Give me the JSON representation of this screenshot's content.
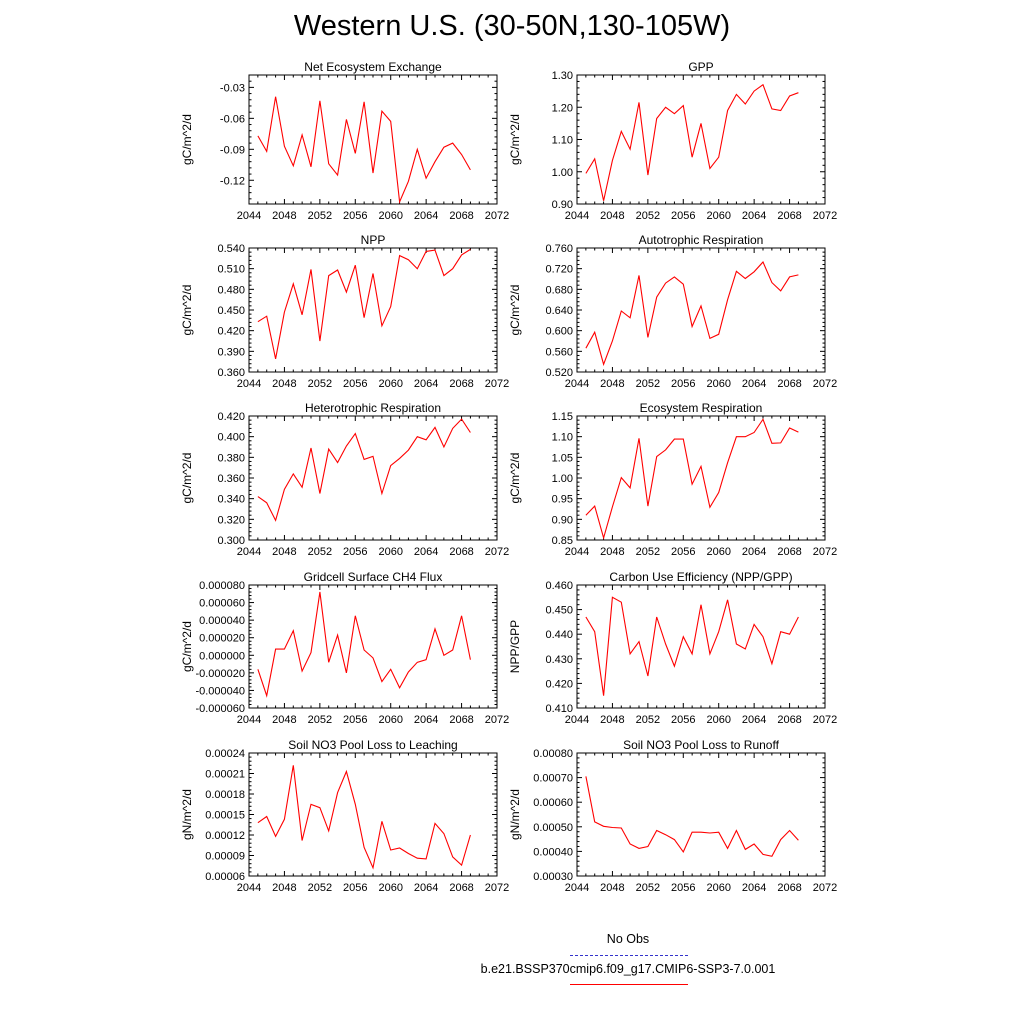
{
  "title": "Western U.S. (30-50N,130-105W)",
  "legend": {
    "obs_label": "No Obs",
    "obs_color": "#3333cc",
    "model_label": "b.e21.BSSP370cmip6.f09_g17.CMIP6-SSP3-7.0.001",
    "model_color": "#ff0000"
  },
  "chart_data": [
    {
      "type": "line",
      "title": "Net Ecosystem Exchange",
      "ylabel": "gC/m^2/d",
      "xlim": [
        2044,
        2072
      ],
      "ylim": [
        -0.143,
        -0.018
      ],
      "xticks": [
        2044,
        2048,
        2052,
        2056,
        2060,
        2064,
        2068,
        2072
      ],
      "xtick_labels": [
        "2044",
        "2048",
        "2052",
        "2056",
        "2060",
        "2064",
        "2068",
        "2072"
      ],
      "yticks": [
        -0.03,
        -0.06,
        -0.09,
        -0.12
      ],
      "ytick_labels": [
        "-0.03",
        "-0.06",
        "-0.09",
        "-0.12"
      ],
      "x": [
        2045,
        2046,
        2047,
        2048,
        2049,
        2050,
        2051,
        2052,
        2053,
        2054,
        2055,
        2056,
        2057,
        2058,
        2059,
        2060,
        2061,
        2062,
        2063,
        2064,
        2065,
        2066,
        2067,
        2068,
        2069
      ],
      "values": [
        -0.077,
        -0.092,
        -0.039,
        -0.087,
        -0.106,
        -0.076,
        -0.107,
        -0.043,
        -0.104,
        -0.115,
        -0.061,
        -0.094,
        -0.044,
        -0.113,
        -0.053,
        -0.063,
        -0.141,
        -0.121,
        -0.09,
        -0.118,
        -0.102,
        -0.088,
        -0.084,
        -0.095,
        -0.11
      ]
    },
    {
      "type": "line",
      "title": "GPP",
      "ylabel": "gC/m^2/d",
      "xlim": [
        2044,
        2072
      ],
      "ylim": [
        0.9,
        1.3
      ],
      "xticks": [
        2044,
        2048,
        2052,
        2056,
        2060,
        2064,
        2068,
        2072
      ],
      "xtick_labels": [
        "2044",
        "2048",
        "2052",
        "2056",
        "2060",
        "2064",
        "2068",
        "2072"
      ],
      "yticks": [
        0.9,
        1.0,
        1.1,
        1.2,
        1.3
      ],
      "ytick_labels": [
        "0.90",
        "1.00",
        "1.10",
        "1.20",
        "1.30"
      ],
      "x": [
        2045,
        2046,
        2047,
        2048,
        2049,
        2050,
        2051,
        2052,
        2053,
        2054,
        2055,
        2056,
        2057,
        2058,
        2059,
        2060,
        2061,
        2062,
        2063,
        2064,
        2065,
        2066,
        2067,
        2068,
        2069
      ],
      "values": [
        0.995,
        1.04,
        0.91,
        1.035,
        1.125,
        1.07,
        1.215,
        0.99,
        1.165,
        1.2,
        1.18,
        1.205,
        1.045,
        1.15,
        1.01,
        1.045,
        1.19,
        1.24,
        1.21,
        1.25,
        1.27,
        1.195,
        1.19,
        1.235,
        1.245
      ]
    },
    {
      "type": "line",
      "title": "NPP",
      "ylabel": "gC/m^2/d",
      "xlim": [
        2044,
        2072
      ],
      "ylim": [
        0.36,
        0.54
      ],
      "xticks": [
        2044,
        2048,
        2052,
        2056,
        2060,
        2064,
        2068,
        2072
      ],
      "xtick_labels": [
        "2044",
        "2048",
        "2052",
        "2056",
        "2060",
        "2064",
        "2068",
        "2072"
      ],
      "yticks": [
        0.36,
        0.39,
        0.42,
        0.45,
        0.48,
        0.51,
        0.54
      ],
      "ytick_labels": [
        "0.360",
        "0.390",
        "0.420",
        "0.450",
        "0.480",
        "0.510",
        "0.540"
      ],
      "x": [
        2045,
        2046,
        2047,
        2048,
        2049,
        2050,
        2051,
        2052,
        2053,
        2054,
        2055,
        2056,
        2057,
        2058,
        2059,
        2060,
        2061,
        2062,
        2063,
        2064,
        2065,
        2066,
        2067,
        2068,
        2069
      ],
      "values": [
        0.433,
        0.441,
        0.379,
        0.447,
        0.488,
        0.443,
        0.509,
        0.405,
        0.5,
        0.508,
        0.476,
        0.515,
        0.439,
        0.503,
        0.427,
        0.455,
        0.529,
        0.523,
        0.51,
        0.535,
        0.537,
        0.5,
        0.51,
        0.53,
        0.538
      ]
    },
    {
      "type": "line",
      "title": "Autotrophic Respiration",
      "ylabel": "gC/m^2/d",
      "xlim": [
        2044,
        2072
      ],
      "ylim": [
        0.52,
        0.76
      ],
      "xticks": [
        2044,
        2048,
        2052,
        2056,
        2060,
        2064,
        2068,
        2072
      ],
      "xtick_labels": [
        "2044",
        "2048",
        "2052",
        "2056",
        "2060",
        "2064",
        "2068",
        "2072"
      ],
      "yticks": [
        0.52,
        0.56,
        0.6,
        0.64,
        0.68,
        0.72,
        0.76
      ],
      "ytick_labels": [
        "0.520",
        "0.560",
        "0.600",
        "0.640",
        "0.680",
        "0.720",
        "0.760"
      ],
      "x": [
        2045,
        2046,
        2047,
        2048,
        2049,
        2050,
        2051,
        2052,
        2053,
        2054,
        2055,
        2056,
        2057,
        2058,
        2059,
        2060,
        2061,
        2062,
        2063,
        2064,
        2065,
        2066,
        2067,
        2068,
        2069
      ],
      "values": [
        0.566,
        0.597,
        0.535,
        0.58,
        0.638,
        0.625,
        0.707,
        0.587,
        0.665,
        0.692,
        0.704,
        0.69,
        0.608,
        0.648,
        0.585,
        0.593,
        0.66,
        0.715,
        0.701,
        0.714,
        0.733,
        0.693,
        0.677,
        0.704,
        0.708
      ]
    },
    {
      "type": "line",
      "title": "Heterotrophic Respiration",
      "ylabel": "gC/m^2/d",
      "xlim": [
        2044,
        2072
      ],
      "ylim": [
        0.3,
        0.42
      ],
      "xticks": [
        2044,
        2048,
        2052,
        2056,
        2060,
        2064,
        2068,
        2072
      ],
      "xtick_labels": [
        "2044",
        "2048",
        "2052",
        "2056",
        "2060",
        "2064",
        "2068",
        "2072"
      ],
      "yticks": [
        0.3,
        0.32,
        0.34,
        0.36,
        0.38,
        0.4,
        0.42
      ],
      "ytick_labels": [
        "0.300",
        "0.320",
        "0.340",
        "0.360",
        "0.380",
        "0.400",
        "0.420"
      ],
      "x": [
        2045,
        2046,
        2047,
        2048,
        2049,
        2050,
        2051,
        2052,
        2053,
        2054,
        2055,
        2056,
        2057,
        2058,
        2059,
        2060,
        2061,
        2062,
        2063,
        2064,
        2065,
        2066,
        2067,
        2068,
        2069
      ],
      "values": [
        0.342,
        0.336,
        0.319,
        0.349,
        0.364,
        0.351,
        0.389,
        0.345,
        0.388,
        0.375,
        0.391,
        0.403,
        0.378,
        0.381,
        0.345,
        0.372,
        0.379,
        0.387,
        0.4,
        0.397,
        0.409,
        0.39,
        0.408,
        0.417,
        0.404
      ]
    },
    {
      "type": "line",
      "title": "Ecosystem Respiration",
      "ylabel": "gC/m^2/d",
      "xlim": [
        2044,
        2072
      ],
      "ylim": [
        0.85,
        1.15
      ],
      "xticks": [
        2044,
        2048,
        2052,
        2056,
        2060,
        2064,
        2068,
        2072
      ],
      "xtick_labels": [
        "2044",
        "2048",
        "2052",
        "2056",
        "2060",
        "2064",
        "2068",
        "2072"
      ],
      "yticks": [
        0.85,
        0.9,
        0.95,
        1.0,
        1.05,
        1.1,
        1.15
      ],
      "ytick_labels": [
        "0.85",
        "0.90",
        "0.95",
        "1.00",
        "1.05",
        "1.10",
        "1.15"
      ],
      "x": [
        2045,
        2046,
        2047,
        2048,
        2049,
        2050,
        2051,
        2052,
        2053,
        2054,
        2055,
        2056,
        2057,
        2058,
        2059,
        2060,
        2061,
        2062,
        2063,
        2064,
        2065,
        2066,
        2067,
        2068,
        2069
      ],
      "values": [
        0.91,
        0.932,
        0.855,
        0.93,
        1.001,
        0.976,
        1.096,
        0.932,
        1.052,
        1.068,
        1.094,
        1.094,
        0.985,
        1.028,
        0.929,
        0.965,
        1.037,
        1.1,
        1.1,
        1.11,
        1.142,
        1.084,
        1.085,
        1.121,
        1.111
      ]
    },
    {
      "type": "line",
      "title": "Gridcell Surface CH4 Flux",
      "ylabel": "gC/m^2/d",
      "xlim": [
        2044,
        2072
      ],
      "ylim": [
        -6e-05,
        8e-05
      ],
      "xticks": [
        2044,
        2048,
        2052,
        2056,
        2060,
        2064,
        2068,
        2072
      ],
      "xtick_labels": [
        "2044",
        "2048",
        "2052",
        "2056",
        "2060",
        "2064",
        "2068",
        "2072"
      ],
      "yticks": [
        -6e-05,
        -4e-05,
        -2e-05,
        0.0,
        2e-05,
        4e-05,
        6e-05,
        8e-05
      ],
      "ytick_labels": [
        "-0.000060",
        "-0.000040",
        "-0.000020",
        "0.000000",
        "0.000020",
        "0.000040",
        "0.000060",
        "0.000080"
      ],
      "x": [
        2045,
        2046,
        2047,
        2048,
        2049,
        2050,
        2051,
        2052,
        2053,
        2054,
        2055,
        2056,
        2057,
        2058,
        2059,
        2060,
        2061,
        2062,
        2063,
        2064,
        2065,
        2066,
        2067,
        2068,
        2069
      ],
      "values": [
        -1.6e-05,
        -4.6e-05,
        7e-06,
        7e-06,
        2.8e-05,
        -1.8e-05,
        3e-06,
        7.2e-05,
        -8e-06,
        2.3e-05,
        -2e-05,
        4.5e-05,
        6e-06,
        -3e-06,
        -3e-05,
        -1.6e-05,
        -3.7e-05,
        -1.9e-05,
        -8e-06,
        -5e-06,
        3e-05,
        0.0,
        6e-06,
        4.5e-05,
        -5e-06
      ]
    },
    {
      "type": "line",
      "title": "Carbon Use Efficiency (NPP/GPP)",
      "ylabel": "NPP/GPP",
      "xlim": [
        2044,
        2072
      ],
      "ylim": [
        0.41,
        0.46
      ],
      "xticks": [
        2044,
        2048,
        2052,
        2056,
        2060,
        2064,
        2068,
        2072
      ],
      "xtick_labels": [
        "2044",
        "2048",
        "2052",
        "2056",
        "2060",
        "2064",
        "2068",
        "2072"
      ],
      "yticks": [
        0.41,
        0.42,
        0.43,
        0.44,
        0.45,
        0.46
      ],
      "ytick_labels": [
        "0.410",
        "0.420",
        "0.430",
        "0.440",
        "0.450",
        "0.460"
      ],
      "x": [
        2045,
        2046,
        2047,
        2048,
        2049,
        2050,
        2051,
        2052,
        2053,
        2054,
        2055,
        2056,
        2057,
        2058,
        2059,
        2060,
        2061,
        2062,
        2063,
        2064,
        2065,
        2066,
        2067,
        2068,
        2069
      ],
      "values": [
        0.447,
        0.441,
        0.415,
        0.455,
        0.453,
        0.432,
        0.437,
        0.423,
        0.447,
        0.436,
        0.427,
        0.439,
        0.432,
        0.452,
        0.432,
        0.441,
        0.454,
        0.436,
        0.434,
        0.444,
        0.439,
        0.428,
        0.441,
        0.44,
        0.447
      ]
    },
    {
      "type": "line",
      "title": "Soil NO3 Pool Loss to Leaching",
      "ylabel": "gN/m^2/d",
      "xlim": [
        2044,
        2072
      ],
      "ylim": [
        6e-05,
        0.00024
      ],
      "xticks": [
        2044,
        2048,
        2052,
        2056,
        2060,
        2064,
        2068,
        2072
      ],
      "xtick_labels": [
        "2044",
        "2048",
        "2052",
        "2056",
        "2060",
        "2064",
        "2068",
        "2072"
      ],
      "yticks": [
        6e-05,
        9e-05,
        0.00012,
        0.00015,
        0.00018,
        0.00021,
        0.00024
      ],
      "ytick_labels": [
        "0.00006",
        "0.00009",
        "0.00012",
        "0.00015",
        "0.00018",
        "0.00021",
        "0.00024"
      ],
      "x": [
        2045,
        2046,
        2047,
        2048,
        2049,
        2050,
        2051,
        2052,
        2053,
        2054,
        2055,
        2056,
        2057,
        2058,
        2059,
        2060,
        2061,
        2062,
        2063,
        2064,
        2065,
        2066,
        2067,
        2068,
        2069
      ],
      "values": [
        0.000138,
        0.000147,
        0.000118,
        0.000143,
        0.000222,
        0.000112,
        0.000165,
        0.00016,
        0.000126,
        0.000182,
        0.000213,
        0.000165,
        0.000102,
        7.2e-05,
        0.00014,
        9.8e-05,
        0.000101,
        9.3e-05,
        8.6e-05,
        8.5e-05,
        0.000137,
        0.000122,
        8.8e-05,
        7.6e-05,
        0.00012
      ]
    },
    {
      "type": "line",
      "title": "Soil NO3 Pool Loss to Runoff",
      "ylabel": "gN/m^2/d",
      "xlim": [
        2044,
        2072
      ],
      "ylim": [
        0.0003,
        0.0008
      ],
      "xticks": [
        2044,
        2048,
        2052,
        2056,
        2060,
        2064,
        2068,
        2072
      ],
      "xtick_labels": [
        "2044",
        "2048",
        "2052",
        "2056",
        "2060",
        "2064",
        "2068",
        "2072"
      ],
      "yticks": [
        0.0003,
        0.0004,
        0.0005,
        0.0006,
        0.0007,
        0.0008
      ],
      "ytick_labels": [
        "0.00030",
        "0.00040",
        "0.00050",
        "0.00060",
        "0.00070",
        "0.00080"
      ],
      "x": [
        2045,
        2046,
        2047,
        2048,
        2049,
        2050,
        2051,
        2052,
        2053,
        2054,
        2055,
        2056,
        2057,
        2058,
        2059,
        2060,
        2061,
        2062,
        2063,
        2064,
        2065,
        2066,
        2067,
        2068,
        2069
      ],
      "values": [
        0.000705,
        0.00052,
        0.000502,
        0.000497,
        0.000495,
        0.00043,
        0.000412,
        0.00042,
        0.000485,
        0.000468,
        0.000448,
        0.000398,
        0.000478,
        0.000478,
        0.000475,
        0.000478,
        0.000412,
        0.000485,
        0.000408,
        0.00043,
        0.000388,
        0.00038,
        0.000448,
        0.000485,
        0.000445
      ]
    }
  ]
}
